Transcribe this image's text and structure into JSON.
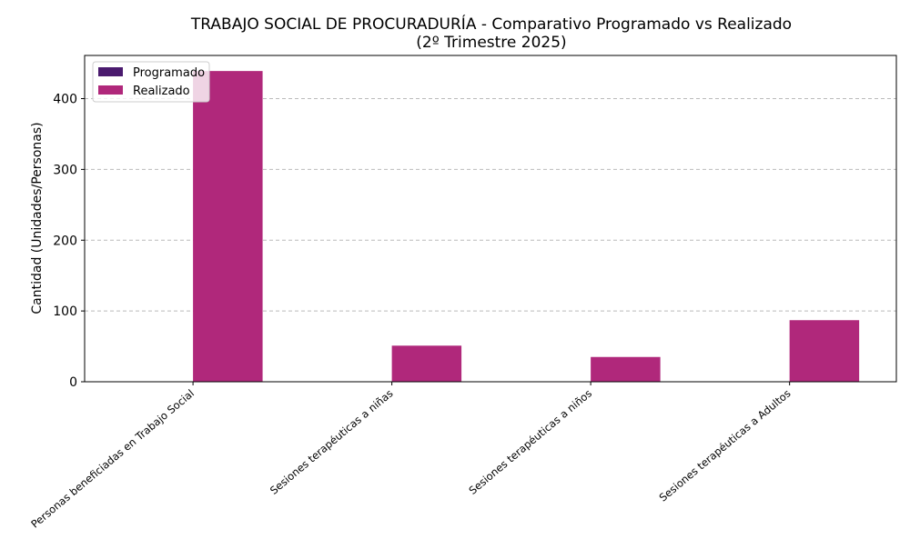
{
  "chart_data": {
    "type": "bar",
    "title_line1": "TRABAJO SOCIAL DE PROCURADURÍA - Comparativo Programado vs Realizado",
    "title_line2": "(2º Trimestre 2025)",
    "xlabel": "",
    "ylabel": "Cantidad (Unidades/Personas)",
    "categories": [
      "Personas beneficiadas en Trabajo Social",
      "Sesiones terapéuticas a niñas",
      "Sesiones terapéuticas a niños",
      "Sesiones terapéuticas a Adultos"
    ],
    "series": [
      {
        "name": "Programado",
        "color": "#4a1a6e",
        "values": [
          0,
          0,
          0,
          0
        ]
      },
      {
        "name": "Realizado",
        "color": "#b0287b",
        "values": [
          439,
          51,
          35,
          87
        ]
      }
    ],
    "ylim": [
      0,
      461
    ],
    "yticks": [
      0,
      100,
      200,
      300,
      400
    ],
    "grid": "y dashed",
    "legend": "top-left"
  }
}
